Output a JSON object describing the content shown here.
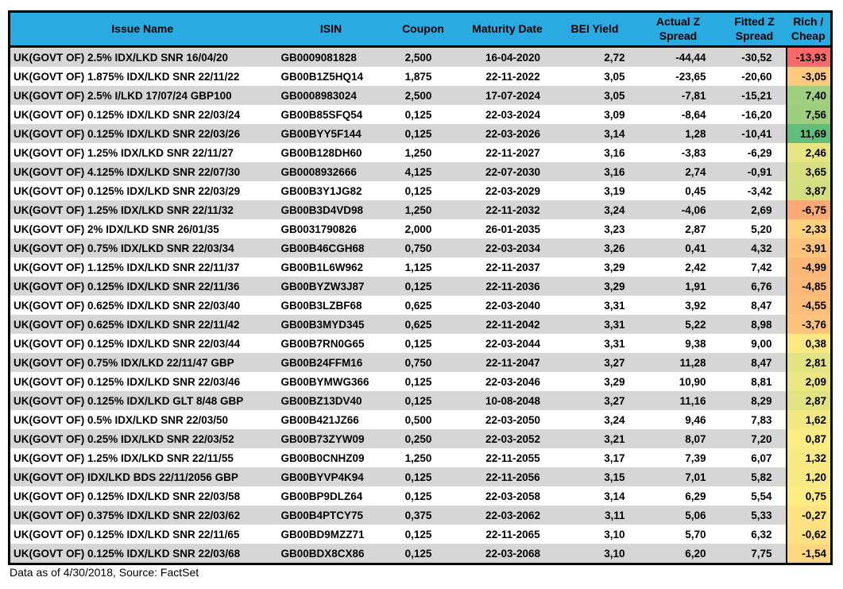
{
  "chart_data": {
    "type": "table",
    "columns": [
      "Issue Name",
      "ISIN",
      "Coupon",
      "Maturity Date",
      "BEI Yield",
      "Actual Z Spread",
      "Fitted Z Spread",
      "Rich / Cheap"
    ],
    "rows": [
      {
        "name": "UK(GOVT OF) 2.5% IDX/LKD SNR 16/04/20",
        "isin": "GB0009081828",
        "coupon": "2,500",
        "maturity_date": "16-04-2020",
        "bei_yield": "2,72",
        "actual_z": "-44,44",
        "fitted_z": "-30,52",
        "rich_cheap": "-13,93"
      },
      {
        "name": "UK(GOVT OF) 1.875% IDX/LKD SNR 22/11/22",
        "isin": "GB00B1Z5HQ14",
        "coupon": "1,875",
        "maturity_date": "22-11-2022",
        "bei_yield": "3,05",
        "actual_z": "-23,65",
        "fitted_z": "-20,60",
        "rich_cheap": "-3,05"
      },
      {
        "name": "UK(GOVT OF) 2.5% I/LKD 17/07/24 GBP100",
        "isin": "GB0008983024",
        "coupon": "2,500",
        "maturity_date": "17-07-2024",
        "bei_yield": "3,05",
        "actual_z": "-7,81",
        "fitted_z": "-15,21",
        "rich_cheap": "7,40"
      },
      {
        "name": "UK(GOVT OF) 0.125% IDX/LKD SNR 22/03/24",
        "isin": "GB00B85SFQ54",
        "coupon": "0,125",
        "maturity_date": "22-03-2024",
        "bei_yield": "3,09",
        "actual_z": "-8,64",
        "fitted_z": "-16,20",
        "rich_cheap": "7,56"
      },
      {
        "name": "UK(GOVT OF) 0.125% IDX/LKD SNR 22/03/26",
        "isin": "GB00BYY5F144",
        "coupon": "0,125",
        "maturity_date": "22-03-2026",
        "bei_yield": "3,14",
        "actual_z": "1,28",
        "fitted_z": "-10,41",
        "rich_cheap": "11,69"
      },
      {
        "name": "UK(GOVT OF) 1.25% IDX/LKD SNR 22/11/27",
        "isin": "GB00B128DH60",
        "coupon": "1,250",
        "maturity_date": "22-11-2027",
        "bei_yield": "3,16",
        "actual_z": "-3,83",
        "fitted_z": "-6,29",
        "rich_cheap": "2,46"
      },
      {
        "name": "UK(GOVT OF) 4.125% IDX/LKD SNR 22/07/30",
        "isin": "GB0008932666",
        "coupon": "4,125",
        "maturity_date": "22-07-2030",
        "bei_yield": "3,16",
        "actual_z": "2,74",
        "fitted_z": "-0,91",
        "rich_cheap": "3,65"
      },
      {
        "name": "UK(GOVT OF) 0.125% IDX/LKD SNR 22/03/29",
        "isin": "GB00B3Y1JG82",
        "coupon": "0,125",
        "maturity_date": "22-03-2029",
        "bei_yield": "3,19",
        "actual_z": "0,45",
        "fitted_z": "-3,42",
        "rich_cheap": "3,87"
      },
      {
        "name": "UK(GOVT OF) 1.25% IDX/LKD SNR 22/11/32",
        "isin": "GB00B3D4VD98",
        "coupon": "1,250",
        "maturity_date": "22-11-2032",
        "bei_yield": "3,24",
        "actual_z": "-4,06",
        "fitted_z": "2,69",
        "rich_cheap": "-6,75"
      },
      {
        "name": "UK(GOVT OF) 2% IDX/LKD SNR 26/01/35",
        "isin": "GB0031790826",
        "coupon": "2,000",
        "maturity_date": "26-01-2035",
        "bei_yield": "3,23",
        "actual_z": "2,87",
        "fitted_z": "5,20",
        "rich_cheap": "-2,33"
      },
      {
        "name": "UK(GOVT OF) 0.75% IDX/LKD SNR 22/03/34",
        "isin": "GB00B46CGH68",
        "coupon": "0,750",
        "maturity_date": "22-03-2034",
        "bei_yield": "3,26",
        "actual_z": "0,41",
        "fitted_z": "4,32",
        "rich_cheap": "-3,91"
      },
      {
        "name": "UK(GOVT OF) 1.125% IDX/LKD SNR 22/11/37",
        "isin": "GB00B1L6W962",
        "coupon": "1,125",
        "maturity_date": "22-11-2037",
        "bei_yield": "3,29",
        "actual_z": "2,42",
        "fitted_z": "7,42",
        "rich_cheap": "-4,99"
      },
      {
        "name": "UK(GOVT OF) 0.125% IDX/LKD SNR 22/11/36",
        "isin": "GB00BYZW3J87",
        "coupon": "0,125",
        "maturity_date": "22-11-2036",
        "bei_yield": "3,29",
        "actual_z": "1,91",
        "fitted_z": "6,76",
        "rich_cheap": "-4,85"
      },
      {
        "name": "UK(GOVT OF) 0.625% IDX/LKD SNR 22/03/40",
        "isin": "GB00B3LZBF68",
        "coupon": "0,625",
        "maturity_date": "22-03-2040",
        "bei_yield": "3,31",
        "actual_z": "3,92",
        "fitted_z": "8,47",
        "rich_cheap": "-4,55"
      },
      {
        "name": "UK(GOVT OF) 0.625% IDX/LKD SNR 22/11/42",
        "isin": "GB00B3MYD345",
        "coupon": "0,625",
        "maturity_date": "22-11-2042",
        "bei_yield": "3,31",
        "actual_z": "5,22",
        "fitted_z": "8,98",
        "rich_cheap": "-3,76"
      },
      {
        "name": "UK(GOVT OF) 0.125% IDX/LKD SNR 22/03/44",
        "isin": "GB00B7RN0G65",
        "coupon": "0,125",
        "maturity_date": "22-03-2044",
        "bei_yield": "3,31",
        "actual_z": "9,38",
        "fitted_z": "9,00",
        "rich_cheap": "0,38"
      },
      {
        "name": "UK(GOVT OF) 0.75% IDX/LKD 22/11/47 GBP",
        "isin": "GB00B24FFM16",
        "coupon": "0,750",
        "maturity_date": "22-11-2047",
        "bei_yield": "3,27",
        "actual_z": "11,28",
        "fitted_z": "8,47",
        "rich_cheap": "2,81"
      },
      {
        "name": "UK(GOVT OF) 0.125% IDX/LKD SNR 22/03/46",
        "isin": "GB00BYMWG366",
        "coupon": "0,125",
        "maturity_date": "22-03-2046",
        "bei_yield": "3,29",
        "actual_z": "10,90",
        "fitted_z": "8,81",
        "rich_cheap": "2,09"
      },
      {
        "name": "UK(GOVT OF) 0.125% IDX/LKD GLT 8/48 GBP",
        "isin": "GB00BZ13DV40",
        "coupon": "0,125",
        "maturity_date": "10-08-2048",
        "bei_yield": "3,27",
        "actual_z": "11,16",
        "fitted_z": "8,29",
        "rich_cheap": "2,87"
      },
      {
        "name": "UK(GOVT OF) 0.5% IDX/LKD SNR 22/03/50",
        "isin": "GB00B421JZ66",
        "coupon": "0,500",
        "maturity_date": "22-03-2050",
        "bei_yield": "3,24",
        "actual_z": "9,46",
        "fitted_z": "7,83",
        "rich_cheap": "1,62"
      },
      {
        "name": "UK(GOVT OF) 0.25% IDX/LKD SNR 22/03/52",
        "isin": "GB00B73ZYW09",
        "coupon": "0,250",
        "maturity_date": "22-03-2052",
        "bei_yield": "3,21",
        "actual_z": "8,07",
        "fitted_z": "7,20",
        "rich_cheap": "0,87"
      },
      {
        "name": "UK(GOVT OF) 1.25% IDX/LKD SNR 22/11/55",
        "isin": "GB00B0CNHZ09",
        "coupon": "1,250",
        "maturity_date": "22-11-2055",
        "bei_yield": "3,17",
        "actual_z": "7,39",
        "fitted_z": "6,07",
        "rich_cheap": "1,32"
      },
      {
        "name": "UK(GOVT OF) IDX/LKD BDS 22/11/2056 GBP",
        "isin": "GB00BYVP4K94",
        "coupon": "0,125",
        "maturity_date": "22-11-2056",
        "bei_yield": "3,15",
        "actual_z": "7,01",
        "fitted_z": "5,82",
        "rich_cheap": "1,20"
      },
      {
        "name": "UK(GOVT OF) 0.125% IDX/LKD SNR 22/03/58",
        "isin": "GB00BP9DLZ64",
        "coupon": "0,125",
        "maturity_date": "22-03-2058",
        "bei_yield": "3,14",
        "actual_z": "6,29",
        "fitted_z": "5,54",
        "rich_cheap": "0,75"
      },
      {
        "name": "UK(GOVT OF) 0.375% IDX/LKD SNR 22/03/62",
        "isin": "GB00B4PTCY75",
        "coupon": "0,375",
        "maturity_date": "22-03-2062",
        "bei_yield": "3,11",
        "actual_z": "5,06",
        "fitted_z": "5,33",
        "rich_cheap": "-0,27"
      },
      {
        "name": "UK(GOVT OF) 0.125% IDX/LKD SNR 22/11/65",
        "isin": "GB00BD9MZZ71",
        "coupon": "0,125",
        "maturity_date": "22-11-2065",
        "bei_yield": "3,10",
        "actual_z": "5,70",
        "fitted_z": "6,32",
        "rich_cheap": "-0,62"
      },
      {
        "name": "UK(GOVT OF) 0.125% IDX/LKD SNR 22/03/68",
        "isin": "GB00BDX8CX86",
        "coupon": "0,125",
        "maturity_date": "22-03-2068",
        "bei_yield": "3,10",
        "actual_z": "6,20",
        "fitted_z": "7,75",
        "rich_cheap": "-1,54"
      }
    ],
    "conditional_formatting": {
      "column": "rich_cheap",
      "type": "three_color_scale",
      "min_value": -13.93,
      "mid_value": 0.75,
      "max_value": 11.69,
      "min_color": "#F8696B",
      "mid_color": "#FFEB84",
      "max_color": "#63BE7B"
    },
    "layout": {
      "striped_rows": true,
      "first_row_striped": true
    }
  },
  "colors": {
    "header_bg": "#29ABE2",
    "stripe_bg": "#D6D6D6",
    "border": "#000000"
  },
  "footer": {
    "note": "Data as of 4/30/2018, Source: FactSet"
  }
}
